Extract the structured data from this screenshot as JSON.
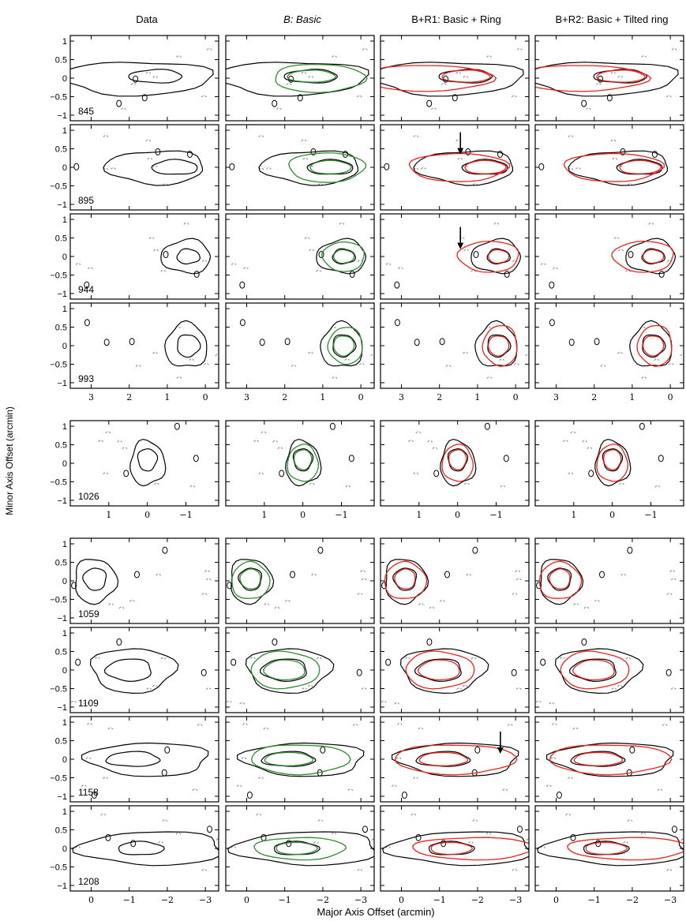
{
  "figure": {
    "column_titles": [
      "Data",
      "B: Basic",
      "B+R1: Basic + Ring",
      "B+R2: Basic + Tilted ring"
    ],
    "column_titles_italic": [
      false,
      true,
      false,
      false
    ],
    "x_label": "Major Axis Offset (arcmin)",
    "y_label": "Minor Axis Offset (arcmin)",
    "y_ticks": [
      "1",
      "0.5",
      "0",
      "−0.5",
      "−1"
    ],
    "y_values": [
      1,
      0.5,
      0,
      -0.5,
      -1
    ],
    "block1_x_ticks": [
      "3",
      "2",
      "1",
      "0"
    ],
    "block1_x_values": [
      3,
      2,
      1,
      0
    ],
    "block2_x_ticks": [
      "1",
      "0",
      "−1"
    ],
    "block2_x_values": [
      1,
      0,
      -1
    ],
    "block3_x_ticks": [
      "0",
      "−1",
      "−2",
      "−3"
    ],
    "block3_x_values": [
      0,
      -1,
      -2,
      -3
    ],
    "channel_labels": [
      "845",
      "895",
      "944",
      "993",
      "1026",
      "1059",
      "1109",
      "1158",
      "1208"
    ],
    "arrows": [
      {
        "channel": "895",
        "column": "B+R1: Basic + Ring"
      },
      {
        "channel": "944",
        "column": "B+R1: Basic + Ring"
      },
      {
        "channel": "1158",
        "column": "B+R1: Basic + Ring"
      }
    ],
    "colors": {
      "data_contour": "#000000",
      "negative_contour": "#8c8c8c",
      "basic_model": "#2e8b2e",
      "ring_model": "#e8221e",
      "axes": "#000000"
    }
  }
}
